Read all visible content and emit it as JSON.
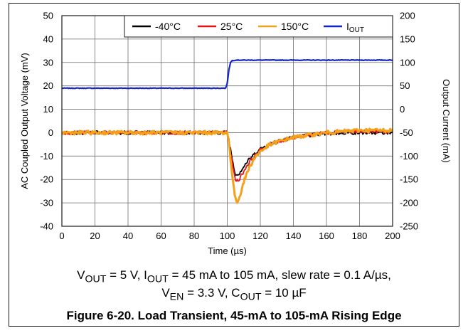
{
  "chart_data": {
    "type": "line",
    "xlabel": "Time (µs)",
    "ylabel": "AC Coupled Output Voltage (mV)",
    "y2label": "Output Current (mA)",
    "xlim": [
      0,
      200
    ],
    "ylim": [
      -40,
      50
    ],
    "y2lim": [
      -250,
      200
    ],
    "x_ticks": [
      "0",
      "20",
      "40",
      "60",
      "80",
      "100",
      "120",
      "140",
      "160",
      "180",
      "200"
    ],
    "y_ticks": [
      "-40",
      "-30",
      "-20",
      "-10",
      "0",
      "10",
      "20",
      "30",
      "40",
      "50"
    ],
    "y2_ticks": [
      "-250",
      "-200",
      "-150",
      "-100",
      "-50",
      "0",
      "50",
      "100",
      "150",
      "200"
    ],
    "grid": true,
    "legend_placement": "top-right",
    "series": [
      {
        "name": "-40°C",
        "color": "#000000",
        "axis": "left",
        "x": [
          0,
          20,
          40,
          60,
          80,
          99,
          100,
          101,
          102,
          103,
          104,
          105,
          106,
          107,
          108,
          110,
          112,
          114,
          116,
          118,
          120,
          125,
          130,
          135,
          140,
          150,
          160,
          170,
          180,
          190,
          200
        ],
        "y": [
          0,
          0,
          0,
          0,
          0,
          0,
          0,
          -3,
          -7,
          -11,
          -15,
          -17.5,
          -18,
          -17.5,
          -16.5,
          -14.5,
          -12.5,
          -11,
          -9.5,
          -8,
          -7,
          -5,
          -3.5,
          -2.5,
          -2,
          -1,
          -0.5,
          0,
          0,
          0,
          0
        ]
      },
      {
        "name": "25°C",
        "color": "#e4161b",
        "axis": "left",
        "x": [
          0,
          20,
          40,
          60,
          80,
          99,
          100,
          101,
          102,
          103,
          104,
          105,
          106,
          107,
          108,
          110,
          112,
          114,
          116,
          118,
          120,
          125,
          130,
          135,
          140,
          150,
          160,
          170,
          180,
          190,
          200
        ],
        "y": [
          0,
          0,
          0,
          0,
          0,
          0,
          0,
          -3.5,
          -8,
          -12.5,
          -17,
          -20,
          -20.5,
          -20,
          -19,
          -16.5,
          -14,
          -12,
          -10.5,
          -9,
          -7.5,
          -5.5,
          -4,
          -3,
          -2,
          -1,
          0,
          0.5,
          0.5,
          0.5,
          0.5
        ]
      },
      {
        "name": "150°C",
        "color": "#f5a01a",
        "axis": "left",
        "x": [
          0,
          20,
          40,
          60,
          80,
          99,
          100,
          101,
          102,
          103,
          104,
          105,
          106,
          107,
          108,
          110,
          112,
          114,
          116,
          118,
          120,
          125,
          130,
          135,
          140,
          150,
          160,
          170,
          180,
          190,
          200
        ],
        "y": [
          0,
          0,
          0,
          0,
          0,
          0,
          0,
          -4,
          -11,
          -18,
          -24,
          -28.5,
          -29.5,
          -28.5,
          -26,
          -21,
          -17,
          -14,
          -11.5,
          -9.5,
          -8,
          -5.5,
          -4,
          -3,
          -2,
          -1,
          0,
          0.5,
          1,
          1,
          1
        ]
      },
      {
        "name": "I_OUT",
        "color": "#1424c8",
        "axis": "right",
        "x": [
          0,
          20,
          40,
          60,
          80,
          99,
          100,
          101,
          102,
          103,
          105,
          110,
          120,
          140,
          160,
          180,
          200
        ],
        "y": [
          45,
          45,
          45,
          45,
          45,
          45,
          55,
          85,
          100,
          104,
          105,
          105,
          105,
          105,
          105,
          105,
          105
        ]
      }
    ]
  },
  "legend": {
    "items": [
      {
        "label": "-40°C",
        "sub": "",
        "color": "#000000"
      },
      {
        "label": "25°C",
        "sub": "",
        "color": "#e4161b"
      },
      {
        "label": "150°C",
        "sub": "",
        "color": "#f5a01a"
      },
      {
        "label": "I",
        "sub": "OUT",
        "color": "#1424c8"
      }
    ]
  },
  "captions": {
    "cond1": "VOUT = 5 V, IOUT = 45 mA to 105 mA, slew rate = 0.1 A/µs,",
    "cond2": "VEN = 3.3 V, COUT = 10 µF",
    "figure_title": "Figure 6-20. Load Transient, 45-mA to 105-mA Rising Edge"
  }
}
